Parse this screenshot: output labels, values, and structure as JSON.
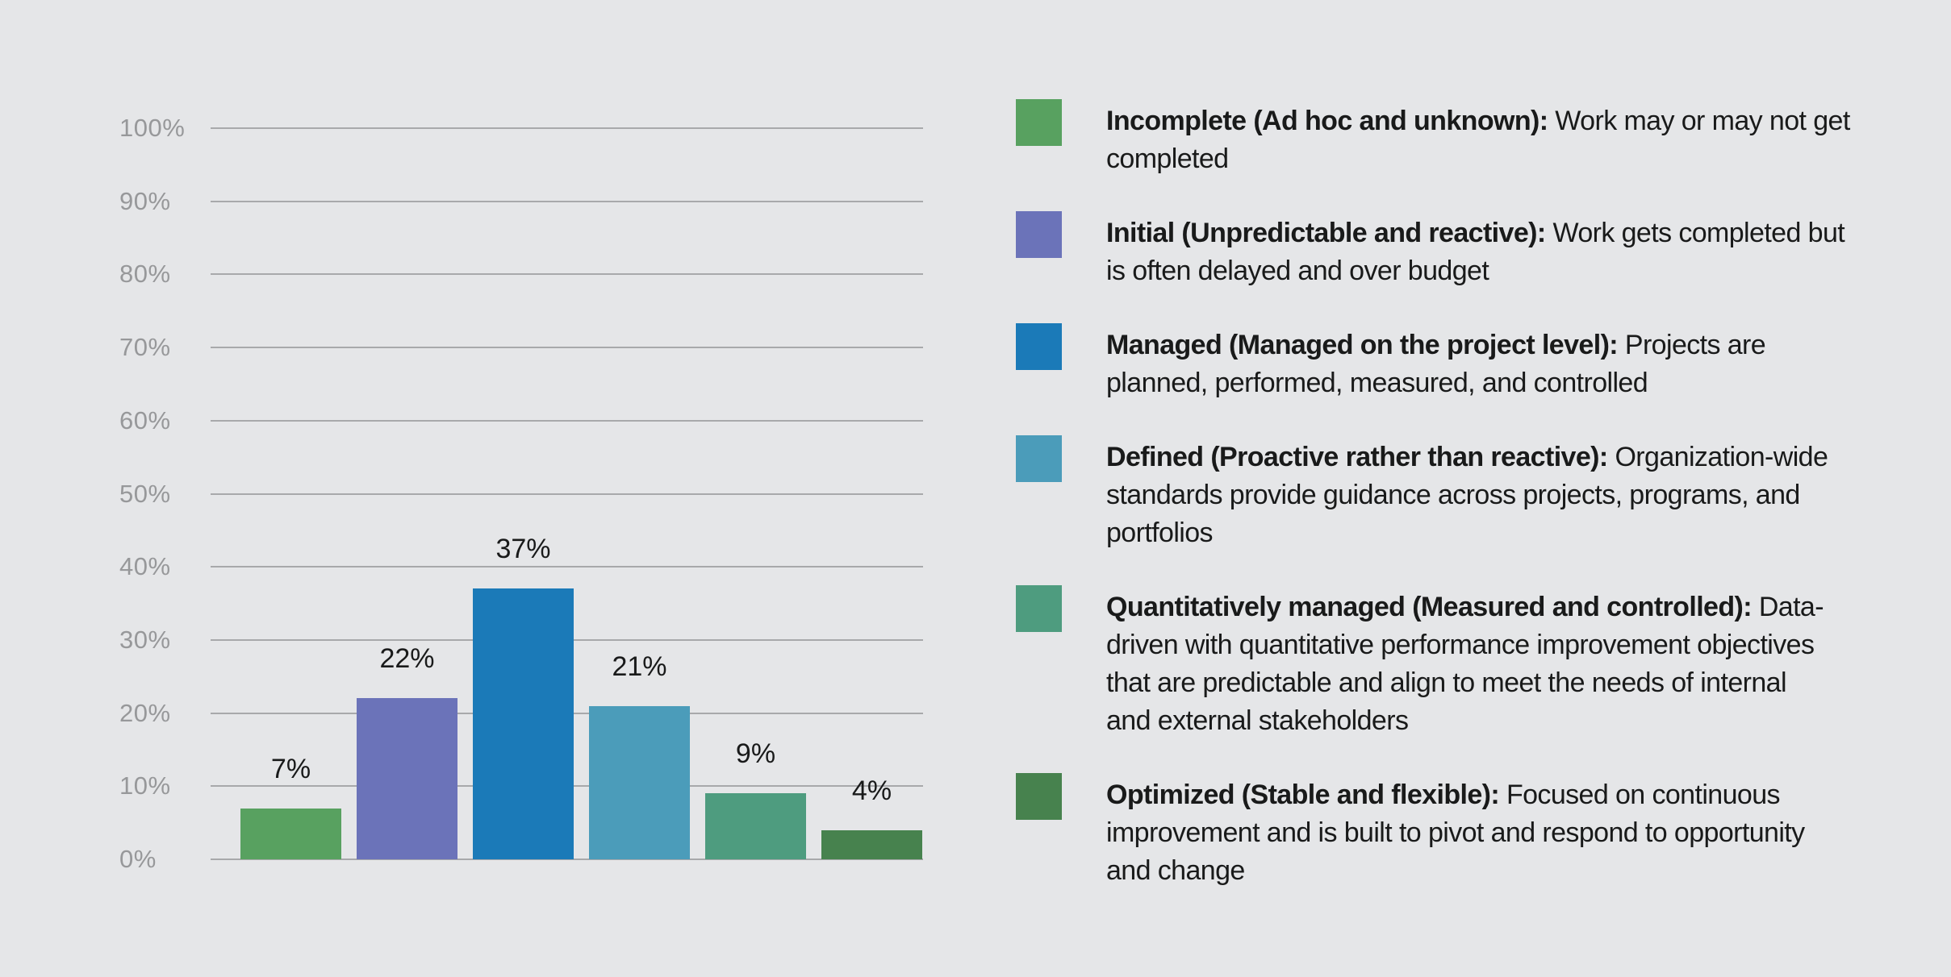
{
  "page": {
    "background": "#e5e6e8"
  },
  "chart_data": {
    "type": "bar",
    "title": "",
    "xlabel": "",
    "ylabel": "",
    "categories": [
      "Incomplete (Ad hoc and unknown)",
      "Initial (Unpredictable and reactive)",
      "Managed (Managed on the project level)",
      "Defined (Proactive rather than reactive)",
      "Quantitatively managed (Measured and controlled)",
      "Optimized (Stable and flexible)"
    ],
    "values": [
      7,
      22,
      37,
      21,
      9,
      4
    ],
    "value_labels": [
      "7%",
      "22%",
      "37%",
      "21%",
      "9%",
      "4%"
    ],
    "bar_colors": [
      "#58a160",
      "#6b73b9",
      "#1b7ab8",
      "#4b9cba",
      "#4e9c7f",
      "#47824e"
    ],
    "ylim": [
      0,
      100
    ],
    "yticks": [
      0,
      10,
      20,
      30,
      40,
      50,
      60,
      70,
      80,
      90,
      100
    ],
    "ytick_labels": [
      "0%",
      "10%",
      "20%",
      "30%",
      "40%",
      "50%",
      "60%",
      "70%",
      "80%",
      "90%",
      "100%"
    ],
    "grid": true,
    "legend_position": "right",
    "gridline_color": "#a8a9ab",
    "axis_label_color": "#97989a",
    "value_label_color": "#191a1a"
  },
  "legend": {
    "text_color": "#191a1a",
    "items": [
      {
        "color": "#58a160",
        "lines": [
          [
            {
              "b": "Incomplete (Ad hoc and unknown):"
            },
            {
              "t": " Work may or may not get"
            }
          ],
          [
            {
              "t": "completed"
            }
          ]
        ]
      },
      {
        "color": "#6b73b9",
        "lines": [
          [
            {
              "b": "Initial (Unpredictable and reactive):"
            },
            {
              "t": " Work gets completed but"
            }
          ],
          [
            {
              "t": "is often delayed and over budget"
            }
          ]
        ]
      },
      {
        "color": "#1b7ab8",
        "lines": [
          [
            {
              "b": "Managed (Managed on the project level):"
            },
            {
              "t": " Projects are"
            }
          ],
          [
            {
              "t": "planned, performed, measured, and controlled"
            }
          ]
        ]
      },
      {
        "color": "#4b9cba",
        "lines": [
          [
            {
              "b": "Defined (Proactive rather than reactive):"
            },
            {
              "t": " Organization-wide"
            }
          ],
          [
            {
              "t": "standards provide guidance across projects, programs, and"
            }
          ],
          [
            {
              "t": "portfolios"
            }
          ]
        ]
      },
      {
        "color": "#4e9c7f",
        "lines": [
          [
            {
              "b": "Quantitatively managed (Measured and controlled):"
            },
            {
              "t": " Data-"
            }
          ],
          [
            {
              "t": "driven with quantitative performance improvement objectives"
            }
          ],
          [
            {
              "t": "that are predictable and align to meet the needs of internal"
            }
          ],
          [
            {
              "t": "and external stakeholders"
            }
          ]
        ]
      },
      {
        "color": "#47824e",
        "lines": [
          [
            {
              "b": "Optimized (Stable and flexible):"
            },
            {
              "t": " Focused on continuous"
            }
          ],
          [
            {
              "t": "improvement and is built to pivot and respond to opportunity"
            }
          ],
          [
            {
              "t": "and change"
            }
          ]
        ]
      }
    ]
  }
}
